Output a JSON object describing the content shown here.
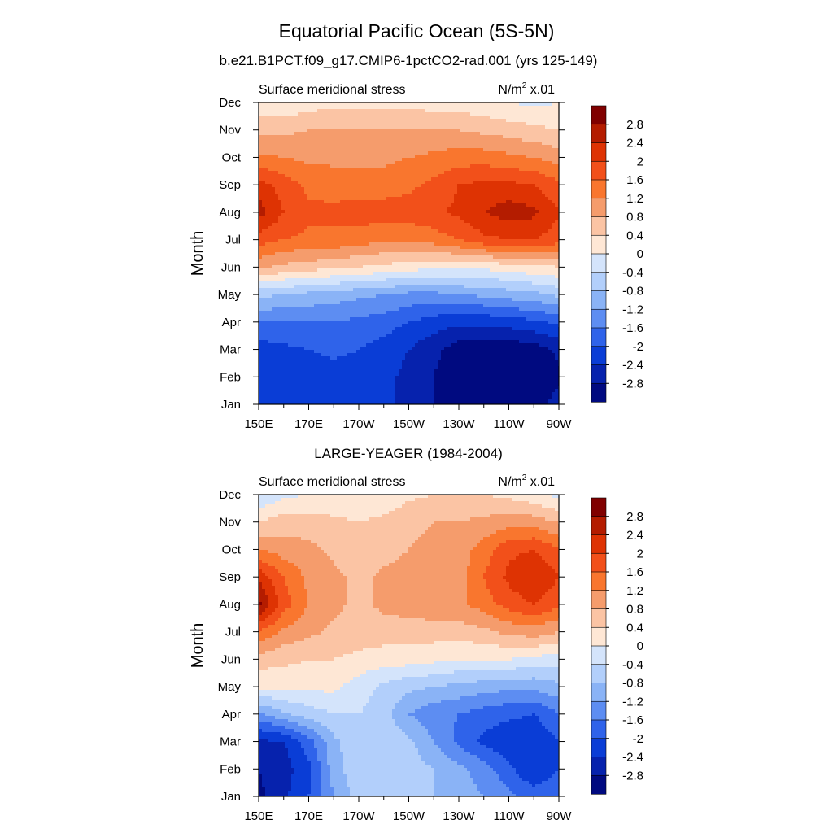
{
  "figure": {
    "title": "Equatorial Pacific Ocean (5S-5N)"
  },
  "colorbar": {
    "levels": [
      "2.8",
      "2.4",
      "2",
      "1.6",
      "1.2",
      "0.8",
      "0.4",
      "0",
      "-0.4",
      "-0.8",
      "-1.2",
      "-1.6",
      "-2",
      "-2.4",
      "-2.8"
    ],
    "colors": [
      "#800000",
      "#b41c00",
      "#de3303",
      "#f2501a",
      "#f9762e",
      "#f59c6c",
      "#fbc4a4",
      "#fee7d5",
      "#d4e4fb",
      "#b2cffb",
      "#8ab3f6",
      "#5d8df2",
      "#2f63ea",
      "#0a3dd6",
      "#0622ad",
      "#000a80"
    ]
  },
  "charts": [
    {
      "subtitle": "b.e21.B1PCT.f09_g17.CMIP6-1pctCO2-rad.001 (yrs 125-149)",
      "left_label": "Surface meridional stress",
      "right_label_base": "N/m",
      "right_label_sup": "2",
      "right_label_scale": " x.01",
      "ylabel": "Month",
      "months": [
        "Jan",
        "Feb",
        "Mar",
        "Apr",
        "May",
        "Jun",
        "Jul",
        "Aug",
        "Sep",
        "Oct",
        "Nov",
        "Dec"
      ],
      "lons": [
        "150E",
        "170E",
        "170W",
        "150W",
        "130W",
        "110W",
        "90W"
      ]
    },
    {
      "subtitle": "LARGE-YEAGER (1984-2004)",
      "left_label": "Surface meridional stress",
      "right_label_base": "N/m",
      "right_label_sup": "2",
      "right_label_scale": " x.01",
      "ylabel": "Month",
      "months": [
        "Jan",
        "Feb",
        "Mar",
        "Apr",
        "May",
        "Jun",
        "Jul",
        "Aug",
        "Sep",
        "Oct",
        "Nov",
        "Dec"
      ],
      "lons": [
        "150E",
        "170E",
        "170W",
        "150W",
        "130W",
        "110W",
        "90W"
      ]
    }
  ],
  "chart_data": [
    {
      "type": "heatmap",
      "title": "b.e21.B1PCT.f09_g17.CMIP6-1pctCO2-rad.001 (yrs 125-149)",
      "ylabel": "Month",
      "x": [
        "150E",
        "160E",
        "170E",
        "180",
        "170W",
        "160W",
        "150W",
        "140W",
        "130W",
        "120W",
        "110W",
        "100W",
        "90W"
      ],
      "y": [
        "Jan",
        "Feb",
        "Mar",
        "Apr",
        "May",
        "Jun",
        "Jul",
        "Aug",
        "Sep",
        "Oct",
        "Nov",
        "Dec"
      ],
      "z": [
        [
          -2.3,
          -2.2,
          -2.2,
          -2.2,
          -2.2,
          -2.3,
          -2.5,
          -2.8,
          -3.0,
          -3.1,
          -3.1,
          -3.0,
          -2.6
        ],
        [
          -2.4,
          -2.3,
          -2.2,
          -2.2,
          -2.2,
          -2.3,
          -2.5,
          -2.8,
          -3.1,
          -3.2,
          -3.2,
          -3.2,
          -2.9
        ],
        [
          -2.2,
          -2.1,
          -2.0,
          -1.9,
          -2.0,
          -2.2,
          -2.4,
          -2.7,
          -3.0,
          -3.1,
          -3.1,
          -3.0,
          -2.7
        ],
        [
          -1.6,
          -1.6,
          -1.6,
          -1.6,
          -1.7,
          -1.8,
          -2.0,
          -2.2,
          -2.3,
          -2.3,
          -2.2,
          -2.1,
          -1.9
        ],
        [
          -0.7,
          -0.8,
          -0.9,
          -1.0,
          -1.1,
          -1.2,
          -1.3,
          -1.3,
          -1.2,
          -1.1,
          -1.0,
          -0.9,
          -0.7
        ],
        [
          0.9,
          0.7,
          0.6,
          0.5,
          0.4,
          0.3,
          0.2,
          0.1,
          0.1,
          0.1,
          0.2,
          0.3,
          0.4
        ],
        [
          1.8,
          1.6,
          1.5,
          1.5,
          1.4,
          1.3,
          1.3,
          1.4,
          1.6,
          1.9,
          2.0,
          2.0,
          1.8
        ],
        [
          2.6,
          2.0,
          1.7,
          1.7,
          1.8,
          1.8,
          1.8,
          1.9,
          2.1,
          2.4,
          2.6,
          2.5,
          2.0
        ],
        [
          2.2,
          1.8,
          1.5,
          1.4,
          1.4,
          1.4,
          1.5,
          1.7,
          2.0,
          2.1,
          2.1,
          2.0,
          1.7
        ],
        [
          1.3,
          1.2,
          1.1,
          1.1,
          1.1,
          1.1,
          1.2,
          1.3,
          1.4,
          1.4,
          1.3,
          1.2,
          1.0
        ],
        [
          0.7,
          0.7,
          0.8,
          0.8,
          0.8,
          0.8,
          0.8,
          0.8,
          0.8,
          0.7,
          0.6,
          0.5,
          0.4
        ],
        [
          0.1,
          0.1,
          0.2,
          0.3,
          0.3,
          0.3,
          0.3,
          0.2,
          0.2,
          0.1,
          0.0,
          -0.1,
          0.0
        ]
      ],
      "zlabel": "N/m2 x.01",
      "zlevels": [
        -2.8,
        -2.4,
        -2,
        -1.6,
        -1.2,
        -0.8,
        -0.4,
        0,
        0.4,
        0.8,
        1.2,
        1.6,
        2,
        2.4,
        2.8
      ]
    },
    {
      "type": "heatmap",
      "title": "LARGE-YEAGER (1984-2004)",
      "ylabel": "Month",
      "x": [
        "150E",
        "160E",
        "170E",
        "180",
        "170W",
        "160W",
        "150W",
        "140W",
        "130W",
        "120W",
        "110W",
        "100W",
        "90W"
      ],
      "y": [
        "Jan",
        "Feb",
        "Mar",
        "Apr",
        "May",
        "Jun",
        "Jul",
        "Aug",
        "Sep",
        "Oct",
        "Nov",
        "Dec"
      ],
      "z": [
        [
          -2.9,
          -2.5,
          -2.0,
          -1.2,
          -0.6,
          -0.6,
          -0.7,
          -0.8,
          -1.0,
          -1.2,
          -1.5,
          -1.8,
          -1.6
        ],
        [
          -2.8,
          -2.6,
          -2.1,
          -1.0,
          -0.5,
          -0.5,
          -0.6,
          -0.8,
          -1.1,
          -1.4,
          -1.9,
          -2.4,
          -2.0
        ],
        [
          -2.5,
          -2.4,
          -1.8,
          -0.9,
          -0.5,
          -0.6,
          -0.7,
          -1.2,
          -1.7,
          -2.1,
          -2.3,
          -2.4,
          -2.0
        ],
        [
          -1.3,
          -0.9,
          -0.6,
          -0.4,
          -0.4,
          -0.6,
          -1.2,
          -1.5,
          -1.6,
          -1.8,
          -1.9,
          -2.0,
          -1.6
        ],
        [
          0.1,
          0.1,
          0.1,
          0.1,
          -0.2,
          -0.5,
          -0.7,
          -0.8,
          -0.9,
          -1.0,
          -1.1,
          -1.1,
          -0.9
        ],
        [
          0.6,
          0.5,
          0.4,
          0.4,
          0.3,
          0.2,
          0.2,
          0.1,
          0.0,
          0.0,
          0.0,
          -0.1,
          -0.2
        ],
        [
          1.6,
          1.1,
          0.9,
          0.7,
          0.6,
          0.6,
          0.6,
          0.6,
          0.6,
          0.7,
          0.9,
          1.0,
          0.8
        ],
        [
          2.9,
          1.8,
          1.2,
          0.9,
          0.7,
          0.9,
          1.0,
          1.1,
          1.1,
          1.4,
          1.8,
          2.0,
          1.7
        ],
        [
          2.3,
          1.6,
          1.1,
          0.9,
          0.7,
          0.9,
          1.0,
          1.0,
          1.0,
          1.6,
          2.1,
          2.4,
          2.0
        ],
        [
          1.2,
          1.0,
          0.9,
          0.7,
          0.5,
          0.6,
          0.8,
          0.9,
          1.0,
          1.4,
          1.9,
          2.0,
          1.6
        ],
        [
          0.4,
          0.6,
          0.6,
          0.5,
          0.4,
          0.5,
          0.7,
          0.8,
          0.8,
          0.9,
          1.0,
          1.0,
          0.8
        ],
        [
          -0.4,
          -0.1,
          0.0,
          0.0,
          0.0,
          0.1,
          0.3,
          0.4,
          0.4,
          0.4,
          0.3,
          0.1,
          -0.1
        ]
      ],
      "zlabel": "N/m2 x.01",
      "zlevels": [
        -2.8,
        -2.4,
        -2,
        -1.6,
        -1.2,
        -0.8,
        -0.4,
        0,
        0.4,
        0.8,
        1.2,
        1.6,
        2,
        2.4,
        2.8
      ]
    }
  ]
}
